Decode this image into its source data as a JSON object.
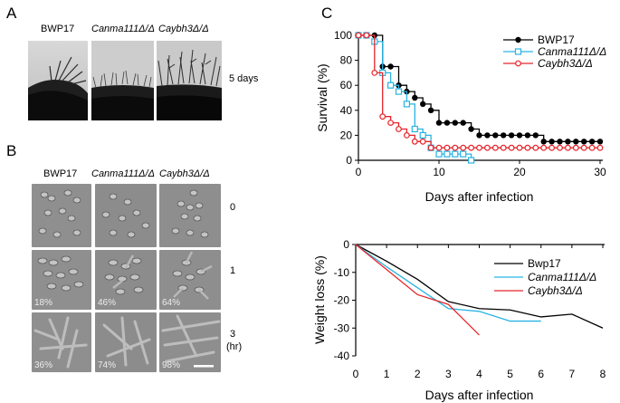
{
  "panelA": {
    "letter": "A",
    "strains": [
      "BWP17",
      "Canma111Δ/Δ",
      "Caybh3Δ/Δ"
    ],
    "time_label": "5 days"
  },
  "panelB": {
    "letter": "B",
    "strains": [
      "BWP17",
      "Canma111Δ/Δ",
      "Caybh3Δ/Δ"
    ],
    "time_labels": [
      "0",
      "1",
      "3",
      "(hr)"
    ],
    "percent_labels": [
      [
        "",
        "",
        ""
      ],
      [
        "18%",
        "46%",
        "64%"
      ],
      [
        "36%",
        "74%",
        "98%"
      ]
    ]
  },
  "panelC": {
    "letter": "C"
  },
  "chart_data": [
    {
      "type": "line",
      "step": true,
      "xlabel": "Days after infection",
      "ylabel": "Survival (%)",
      "xlim": [
        0,
        30
      ],
      "ylim": [
        0,
        100
      ],
      "xticks": [
        0,
        10,
        20,
        30
      ],
      "yticks": [
        0,
        20,
        40,
        60,
        80,
        100
      ],
      "legend_position": "top-right",
      "series": [
        {
          "name": "BWP17",
          "color": "#000000",
          "marker": "filled-circle",
          "x": [
            0,
            1,
            2,
            3,
            4,
            5,
            6,
            7,
            8,
            9,
            10,
            11,
            12,
            13,
            14,
            15,
            16,
            17,
            18,
            19,
            20,
            21,
            22,
            23,
            24,
            25,
            26,
            27,
            28,
            29,
            30
          ],
          "y": [
            100,
            100,
            100,
            75,
            75,
            60,
            55,
            50,
            45,
            40,
            30,
            30,
            30,
            30,
            25,
            20,
            20,
            20,
            20,
            20,
            20,
            20,
            20,
            15,
            15,
            15,
            15,
            15,
            15,
            15,
            15
          ]
        },
        {
          "name": "Canma111Δ/Δ",
          "color": "#29b3e3",
          "marker": "open-square",
          "x": [
            0,
            1,
            2,
            3,
            4,
            5,
            6,
            7,
            8,
            9,
            10,
            11,
            12,
            13,
            14
          ],
          "y": [
            100,
            100,
            95,
            70,
            60,
            55,
            45,
            25,
            20,
            10,
            5,
            5,
            5,
            5,
            0
          ]
        },
        {
          "name": "Caybh3Δ/Δ",
          "color": "#e8242a",
          "marker": "open-circle",
          "x": [
            0,
            1,
            2,
            3,
            4,
            5,
            6,
            7,
            8,
            9,
            10,
            11,
            12,
            13,
            14,
            15,
            16,
            17,
            18,
            19,
            20,
            21,
            22,
            23,
            24,
            25,
            26,
            27,
            28,
            29,
            30
          ],
          "y": [
            100,
            100,
            70,
            35,
            30,
            25,
            20,
            15,
            15,
            10,
            10,
            10,
            10,
            10,
            10,
            10,
            10,
            10,
            10,
            10,
            10,
            10,
            10,
            10,
            10,
            10,
            10,
            10,
            10,
            10,
            10
          ]
        }
      ]
    },
    {
      "type": "line",
      "xlabel": "Days after infection",
      "ylabel": "Weight loss (%)",
      "xlim": [
        0,
        8
      ],
      "ylim": [
        -40,
        0
      ],
      "xticks": [
        0,
        1,
        2,
        3,
        4,
        5,
        6,
        7,
        8
      ],
      "yticks": [
        0,
        -10,
        -20,
        -30,
        -40
      ],
      "legend_position": "right",
      "series": [
        {
          "name": "Bwp17",
          "color": "#000000",
          "x": [
            0,
            1,
            2,
            3,
            4,
            5,
            6,
            7,
            8
          ],
          "y": [
            0,
            -6,
            -12.5,
            -20.5,
            -23,
            -23.5,
            -26,
            -25,
            -30
          ]
        },
        {
          "name": "Canma111Δ/Δ",
          "color": "#29b3e3",
          "x": [
            0,
            1,
            2,
            3,
            4,
            5,
            6
          ],
          "y": [
            0,
            -8,
            -15.5,
            -23,
            -24,
            -27.5,
            -27.5
          ]
        },
        {
          "name": "Caybh3Δ/Δ",
          "color": "#e8242a",
          "x": [
            0,
            1,
            2,
            3,
            4
          ],
          "y": [
            0,
            -9,
            -18,
            -21.5,
            -32.5
          ]
        }
      ]
    }
  ]
}
